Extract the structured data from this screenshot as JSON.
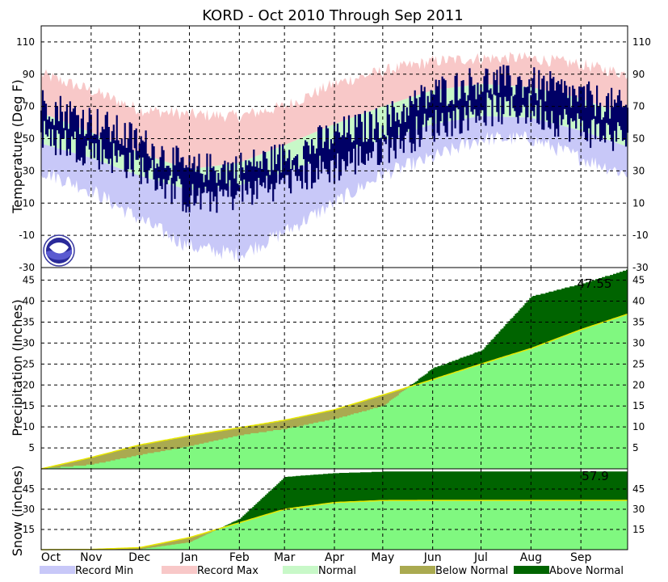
{
  "title": "KORD - Oct 2010 Through Sep 2011",
  "months": [
    "Oct",
    "Nov",
    "Dec",
    "Jan",
    "Feb",
    "Mar",
    "Apr",
    "May",
    "Jun",
    "Jul",
    "Aug",
    "Sep"
  ],
  "colors": {
    "record_min": "#c8c8f8",
    "record_max": "#f8c8c8",
    "normal": "#c8f8c8",
    "observed": "#000066",
    "below_normal": "#aaaa50",
    "above_normal": "#006400",
    "normal_accum": "#80f880",
    "normal_line": "#e8e800"
  },
  "legend": [
    {
      "label": "Record Min",
      "color": "#c8c8f8"
    },
    {
      "label": "Record Max",
      "color": "#f8c8c8"
    },
    {
      "label": "Normal",
      "color": "#c8f8c8"
    },
    {
      "label": "Below Normal",
      "color": "#aaaa50"
    },
    {
      "label": "Above Normal",
      "color": "#006400"
    }
  ],
  "logo": {
    "text": "NOAA"
  },
  "chart_data": [
    {
      "type": "area",
      "panel": "temperature",
      "ylabel": "Temperature (Deg F)",
      "ylim": [
        -30,
        120
      ],
      "yticks": [
        110,
        90,
        70,
        50,
        30,
        10,
        -10,
        -30
      ],
      "grid": true,
      "x": [
        "Oct 1",
        "Nov 1",
        "Dec 1",
        "Jan 1",
        "Feb 1",
        "Mar 1",
        "Apr 1",
        "May 1",
        "Jun 1",
        "Jul 1",
        "Aug 1",
        "Sep 1",
        "Sep 30"
      ],
      "series": [
        {
          "name": "Record Max",
          "values": [
            90,
            80,
            68,
            65,
            64,
            70,
            84,
            92,
            98,
            100,
            100,
            96,
            90
          ]
        },
        {
          "name": "Normal",
          "values": [
            [
              47,
              66
            ],
            [
              38,
              54
            ],
            [
              27,
              41
            ],
            [
              18,
              31
            ],
            [
              21,
              35
            ],
            [
              29,
              46
            ],
            [
              40,
              59
            ],
            [
              49,
              70
            ],
            [
              59,
              80
            ],
            [
              64,
              84
            ],
            [
              63,
              82
            ],
            [
              55,
              75
            ],
            [
              45,
              64
            ]
          ]
        },
        {
          "name": "Record Min",
          "values": [
            30,
            18,
            0,
            -17,
            -22,
            -8,
            10,
            28,
            38,
            50,
            50,
            38,
            28
          ]
        },
        {
          "name": "Observed",
          "values": [
            [
              52,
              72
            ],
            [
              43,
              61
            ],
            [
              33,
              48
            ],
            [
              12,
              30
            ],
            [
              16,
              32
            ],
            [
              24,
              38
            ],
            [
              32,
              52
            ],
            [
              44,
              60
            ],
            [
              58,
              78
            ],
            [
              68,
              86
            ],
            [
              68,
              84
            ],
            [
              56,
              76
            ],
            [
              50,
              68
            ]
          ]
        }
      ]
    },
    {
      "type": "area",
      "panel": "precipitation",
      "ylabel": "Precipitation (Inches)",
      "ylim": [
        0,
        48
      ],
      "yticks": [
        45,
        40,
        35,
        30,
        25,
        20,
        15,
        10,
        5
      ],
      "grid": true,
      "total_label": "47.55",
      "x": [
        "Oct 1",
        "Nov 1",
        "Dec 1",
        "Jan 1",
        "Feb 1",
        "Mar 1",
        "Apr 1",
        "May 1",
        "Jun 1",
        "Jul 1",
        "Aug 1",
        "Sep 1",
        "Sep 30"
      ],
      "series": [
        {
          "name": "Normal",
          "values": [
            0,
            2.7,
            5.7,
            7.9,
            9.8,
            11.6,
            14.1,
            17.6,
            21.3,
            25.0,
            28.7,
            33.2,
            36.9
          ]
        },
        {
          "name": "Observed",
          "values": [
            0,
            1.0,
            3.3,
            5.4,
            8.0,
            9.5,
            11.9,
            15.0,
            24.0,
            28.2,
            41.1,
            44.1,
            47.55
          ]
        }
      ]
    },
    {
      "type": "area",
      "panel": "snow",
      "ylabel": "Snow (inches)",
      "ylim": [
        0,
        60
      ],
      "yticks": [
        45,
        30,
        15
      ],
      "grid": true,
      "total_label": "57.9",
      "x": [
        "Oct 1",
        "Nov 1",
        "Dec 1",
        "Jan 1",
        "Feb 1",
        "Mar 1",
        "Apr 1",
        "May 1",
        "Jun 1",
        "Jul 1",
        "Aug 1",
        "Sep 1",
        "Sep 30"
      ],
      "series": [
        {
          "name": "Normal",
          "values": [
            0,
            0.2,
            1.5,
            9.0,
            20.0,
            30.0,
            35.0,
            36.5,
            36.6,
            36.6,
            36.6,
            36.6,
            36.6
          ]
        },
        {
          "name": "Observed",
          "values": [
            0,
            0,
            0.3,
            5.5,
            23.0,
            54.0,
            56.8,
            57.9,
            57.9,
            57.9,
            57.9,
            57.9,
            57.9
          ]
        }
      ]
    }
  ]
}
